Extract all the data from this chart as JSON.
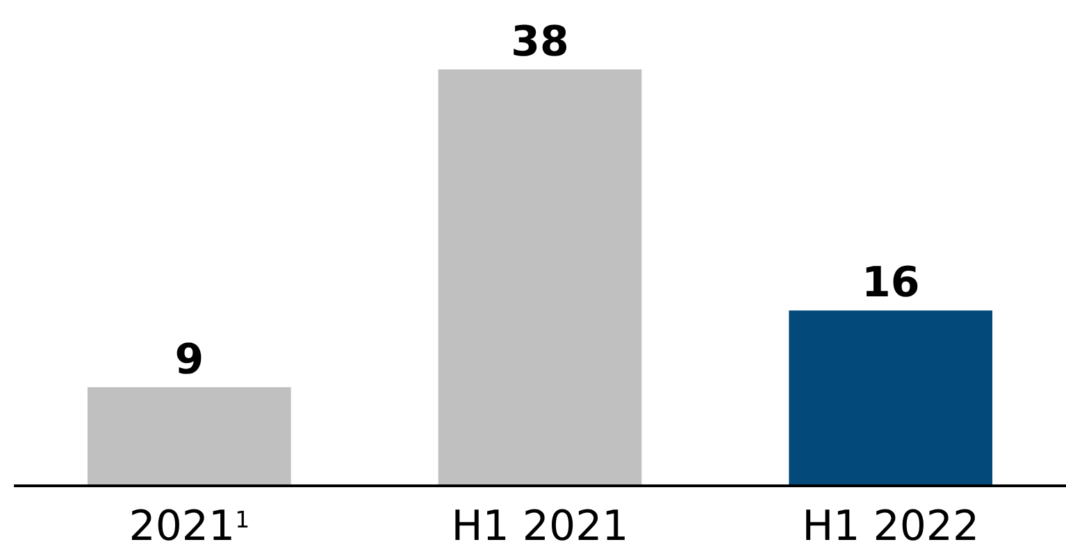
{
  "chart_data": {
    "type": "bar",
    "categories": [
      "2021$^{1}$",
      "H1 2021",
      "H1 2022"
    ],
    "values": [
      9,
      38,
      16
    ],
    "colors": [
      "#c0c0c0",
      "#c0c0c0",
      "#03497a"
    ],
    "data_labels": true
  }
}
